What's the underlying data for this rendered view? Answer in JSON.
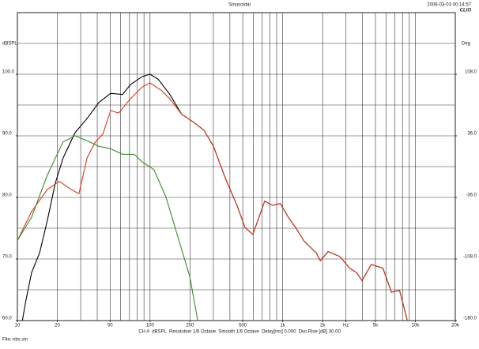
{
  "chart_data": {
    "type": "line",
    "title": "Sinusoidal",
    "timestamp": "2006-03-03 00:14:57",
    "brand": "CLIO",
    "y_label": "dBSPL",
    "y2_label": "Deg",
    "footer": "CH A  dBSPL  Resolution 1/6 Octave  Smooth 1/6 Octave  Delay[ms] 0.000  Dist.Rise [dB] 30.00",
    "file": "File: nbs.sin",
    "xscale": "log",
    "xlim": [
      10,
      20000
    ],
    "ylim": [
      60,
      110
    ],
    "y2lim": [
      -180,
      180
    ],
    "xticks": [
      10,
      20,
      50,
      100,
      200,
      500,
      {
        "value": 1000,
        "label": "1k"
      },
      {
        "value": 2000,
        "label": "2k"
      },
      {
        "value": 3000,
        "label": "Hz"
      },
      {
        "value": 5000,
        "label": "5k"
      },
      {
        "value": 10000,
        "label": "10k"
      },
      {
        "value": 20000,
        "label": "20k"
      }
    ],
    "yticks": [
      {
        "value": 60,
        "label": "60.0"
      },
      {
        "value": 70,
        "label": "70.0"
      },
      {
        "value": 80,
        "label": "80.0"
      },
      {
        "value": 90,
        "label": "90.0"
      },
      {
        "value": 100,
        "label": "100.0"
      }
    ],
    "y2ticks": [
      {
        "value": -180,
        "label": "-180.0"
      },
      {
        "value": -108,
        "label": "-108.0"
      },
      {
        "value": -36,
        "label": "-36.0"
      },
      {
        "value": 36,
        "label": "36.0"
      },
      {
        "value": 108,
        "label": "108.0"
      }
    ],
    "xgrid": [
      20,
      30,
      40,
      50,
      60,
      70,
      80,
      90,
      100,
      200,
      300,
      400,
      500,
      600,
      700,
      800,
      900,
      1000,
      2000,
      3000,
      4000,
      5000,
      6000,
      7000,
      8000,
      9000,
      10000
    ],
    "ygrid": [
      65,
      70,
      75,
      80,
      85,
      90,
      95,
      100,
      105
    ],
    "grid": true,
    "series": [
      {
        "name": "black",
        "color": "#000000",
        "x": [
          10.9,
          11.6,
          12.8,
          14.7,
          16.8,
          19.3,
          22.1,
          27.2,
          33.5,
          41.1,
          50.5,
          62,
          71,
          87,
          100,
          115,
          141,
          173,
          213,
          255,
          301,
          368,
          452,
          520,
          596,
          732,
          840,
          960,
          1100,
          1270,
          1450,
          1790,
          1920,
          2200,
          2700,
          3200,
          3600,
          3960,
          4650,
          5700,
          6600,
          7600,
          8700
        ],
        "values": [
          60,
          63.3,
          67.8,
          71,
          76.2,
          82.3,
          86.4,
          90.5,
          92.8,
          95.4,
          96.9,
          96.7,
          98.3,
          99.6,
          100,
          99.2,
          96.7,
          93.5,
          92.2,
          90.9,
          88.3,
          83.2,
          78.7,
          75.1,
          74,
          79.4,
          78.7,
          79,
          76.8,
          74.9,
          72.9,
          71,
          69.7,
          71.2,
          70.4,
          68.5,
          67.8,
          66.5,
          69.1,
          68.5,
          64.6,
          64.9,
          60
        ]
      },
      {
        "name": "red",
        "color": "#d9381e",
        "x": [
          10,
          12.8,
          16.8,
          20.7,
          25.4,
          29.1,
          33.5,
          38.4,
          44.1,
          50.5,
          58,
          71,
          87,
          100,
          123,
          141,
          173,
          213,
          255,
          301,
          368,
          452,
          520,
          596,
          732,
          840,
          960,
          1100,
          1270,
          1450,
          1790,
          1920,
          2200,
          2700,
          3200,
          3600,
          3960,
          4650,
          5700,
          6600,
          7600,
          8700
        ],
        "values": [
          73,
          77.7,
          81.3,
          82.6,
          81.3,
          80.6,
          86.4,
          88.9,
          90.3,
          94.1,
          93.7,
          96,
          97.9,
          98.6,
          97.3,
          96,
          93.5,
          92.2,
          90.9,
          88.3,
          83.2,
          78.7,
          75.1,
          74,
          79.4,
          78.7,
          79,
          76.8,
          74.9,
          72.9,
          71,
          69.7,
          71.2,
          70.4,
          68.5,
          67.8,
          66.5,
          69.1,
          68.5,
          64.6,
          64.9,
          60
        ]
      },
      {
        "name": "green",
        "color": "#3a8a2a",
        "x": [
          10,
          12.8,
          16.8,
          22.1,
          27.2,
          33.5,
          41.1,
          50.5,
          62,
          76,
          87,
          107,
          132,
          162,
          199,
          229
        ],
        "values": [
          73,
          76.8,
          83.6,
          89,
          90,
          89.2,
          88.3,
          87.9,
          87,
          87,
          85.8,
          84.5,
          80,
          73.6,
          67.2,
          60
        ]
      }
    ]
  }
}
